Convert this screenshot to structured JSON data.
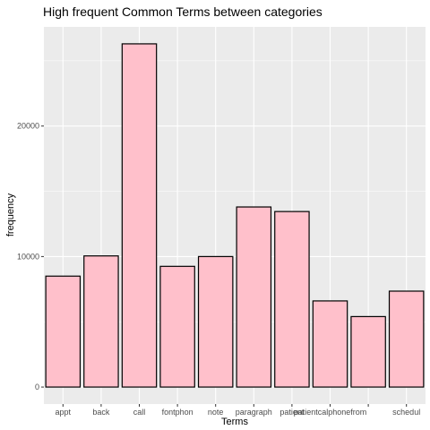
{
  "chart_data": {
    "type": "bar",
    "title": "High frequent Common Terms between categories",
    "xlabel": "Terms",
    "ylabel": "frequency",
    "categories": [
      "appt",
      "back",
      "call",
      "fontphon",
      "note",
      "paragraph",
      "patient",
      "patientcal",
      "phonefrom",
      "schedul"
    ],
    "tick_labels": [
      "appt",
      "back",
      "call",
      "fontphon",
      "note",
      "paragraph",
      "patient",
      "patientcalphonefrom",
      "",
      "schedul"
    ],
    "values": [
      8500,
      10050,
      26300,
      9250,
      10000,
      13800,
      13450,
      6600,
      5400,
      7350
    ],
    "ylim": [
      -1300,
      27600
    ],
    "yticks": [
      0,
      10000,
      20000
    ],
    "ytick_labels": [
      "0",
      "10000",
      "20000"
    ],
    "bar_fill": "#FFC0CB",
    "bar_stroke": "#000000",
    "panel_background": "#EBEBEB",
    "grid": true,
    "gridline_color": "#FFFFFF"
  }
}
